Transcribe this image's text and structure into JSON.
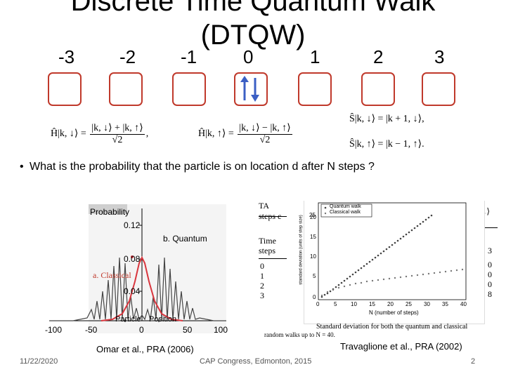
{
  "slide": {
    "title_line1": "Discrete Time Quantum Walk",
    "title_line2": "(DTQW)",
    "positions": [
      "-3",
      "-2",
      "-1",
      "0",
      "1",
      "2",
      "3"
    ],
    "hadamard_down_lhs": "Ĥ|k, ↓⟩ =",
    "hadamard_down_num": "|k, ↓⟩ + |k, ↑⟩",
    "hadamard_up_lhs": "Ĥ|k, ↑⟩ =",
    "hadamard_up_num": "|k, ↓⟩ − |k, ↑⟩",
    "sqrt2": "√2",
    "comma": ",",
    "shift_down": "Ŝ|k, ↓⟩ = |k + 1, ↓⟩,",
    "shift_up": "Ŝ|k, ↑⟩ = |k − 1, ↑⟩.",
    "bullet": "What is the probability that the particle is on location d after N steps ?",
    "bullet_dot": "•",
    "cite_left": "Omar et al., PRA (2006)",
    "cite_right": "Travaglione et al., PRA (2002)",
    "date": "11/22/2020",
    "conference": "CAP Congress, Edmonton, 2015",
    "page": "2"
  },
  "left_figure": {
    "ylabel": "Probability",
    "yticks": [
      "0.12",
      "0.08",
      "0.04"
    ],
    "xticks": [
      "-100",
      "-50",
      "0",
      "50",
      "100"
    ],
    "xlabel_particle": "Particle",
    "xlabel_position": "Position",
    "label_quantum": "b. Quantum",
    "label_classical": "a. Classical"
  },
  "right_figure": {
    "table_frag_1": "TA",
    "table_frag_2": "steps c",
    "table_time": "Time",
    "table_steps": "steps",
    "table_rows": [
      "0",
      "1",
      "2",
      "3"
    ],
    "right_col": [
      "3",
      "0",
      "0",
      "0",
      "8"
    ],
    "ket_frag": "|, ↓⟩",
    "legend_quantum": "Quantum walk",
    "legend_classical": "Classical walk",
    "yaxis_label": "standard deviation (units of step size)",
    "yticks": [
      "25",
      "20",
      "15",
      "10",
      "5",
      "0"
    ],
    "xticks": [
      "0",
      "5",
      "10",
      "15",
      "20",
      "25",
      "30",
      "35",
      "40"
    ],
    "xlabel": "N (number of steps)",
    "caption_1": "Standard deviation for both the quantum and classical",
    "caption_2": "random walks up to N = 40."
  }
}
